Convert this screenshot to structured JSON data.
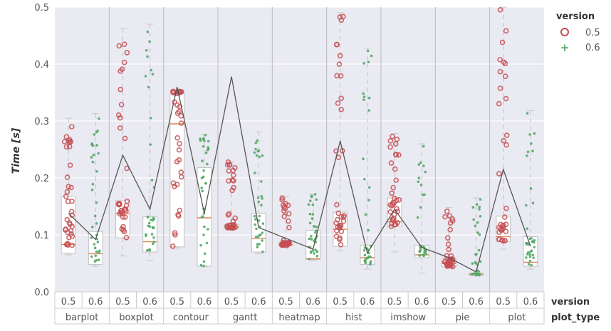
{
  "chart_data": {
    "type": "boxplot",
    "ylabel": "Time [s]",
    "ylim": [
      0,
      0.5
    ],
    "yticks": [
      "0.0",
      "0.1",
      "0.2",
      "0.3",
      "0.4",
      "0.5"
    ],
    "grid": true,
    "legend": {
      "title": "version",
      "placement": "right",
      "entries": [
        "0.5",
        "0.6"
      ]
    },
    "row_labels": {
      "version": "version",
      "plot_type": "plot_type"
    },
    "categories": [
      "barplot",
      "boxplot",
      "contour",
      "gantt",
      "heatmap",
      "hist",
      "imshow",
      "pie",
      "plot"
    ],
    "versions": [
      "0.5",
      "0.6"
    ],
    "series": [
      {
        "name": "0.5",
        "boxes": [
          {
            "min": 0.065,
            "q1": 0.068,
            "median": 0.083,
            "q3": 0.168,
            "max": 0.305
          },
          {
            "min": 0.063,
            "q1": 0.095,
            "median": 0.138,
            "q3": 0.16,
            "max": 0.462
          },
          {
            "min": 0.077,
            "q1": 0.079,
            "median": 0.295,
            "q3": 0.348,
            "max": 0.352
          },
          {
            "min": 0.111,
            "q1": 0.112,
            "median": 0.114,
            "q3": 0.118,
            "max": 0.228
          },
          {
            "min": 0.079,
            "q1": 0.081,
            "median": 0.083,
            "q3": 0.087,
            "max": 0.167
          },
          {
            "min": 0.072,
            "q1": 0.08,
            "median": 0.11,
            "q3": 0.14,
            "max": 0.49
          },
          {
            "min": 0.07,
            "q1": 0.115,
            "median": 0.123,
            "q3": 0.165,
            "max": 0.278
          },
          {
            "min": 0.042,
            "q1": 0.044,
            "median": 0.05,
            "q3": 0.058,
            "max": 0.148
          },
          {
            "min": 0.075,
            "q1": 0.088,
            "median": 0.097,
            "q3": 0.133,
            "max": 0.5
          }
        ]
      },
      {
        "name": "0.6",
        "boxes": [
          {
            "min": 0.045,
            "q1": 0.048,
            "median": 0.067,
            "q3": 0.106,
            "max": 0.313
          },
          {
            "min": 0.055,
            "q1": 0.07,
            "median": 0.088,
            "q3": 0.132,
            "max": 0.47
          },
          {
            "min": 0.044,
            "q1": 0.045,
            "median": 0.13,
            "q3": 0.218,
            "max": 0.276
          },
          {
            "min": 0.067,
            "q1": 0.07,
            "median": 0.094,
            "q3": 0.138,
            "max": 0.281
          },
          {
            "min": 0.055,
            "q1": 0.057,
            "median": 0.058,
            "q3": 0.108,
            "max": 0.172
          },
          {
            "min": 0.04,
            "q1": 0.048,
            "median": 0.06,
            "q3": 0.082,
            "max": 0.428
          },
          {
            "min": 0.033,
            "q1": 0.06,
            "median": 0.065,
            "q3": 0.082,
            "max": 0.26
          },
          {
            "min": 0.028,
            "q1": 0.029,
            "median": 0.031,
            "q3": 0.033,
            "max": 0.165
          },
          {
            "min": 0.04,
            "q1": 0.045,
            "median": 0.052,
            "q3": 0.097,
            "max": 0.318
          }
        ]
      }
    ],
    "mean_line": [
      0.138,
      0.092,
      0.24,
      0.145,
      0.36,
      0.138,
      0.378,
      0.113,
      0.094,
      0.075,
      0.265,
      0.068,
      0.145,
      0.078,
      0.06,
      0.035,
      0.215,
      0.08
    ],
    "colors": {
      "v05": "#c44e52",
      "v06": "#55a868",
      "median": "#dd8452",
      "line": "#555555",
      "background": "#eaeaf2",
      "grid": "#ffffff"
    }
  }
}
